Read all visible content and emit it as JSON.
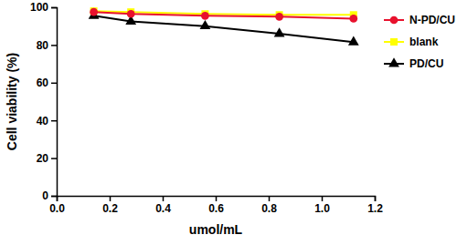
{
  "chart_data": {
    "type": "line",
    "x_label": "umol/mL",
    "y_label": "Cell viability (%)",
    "x": [
      0.14,
      0.28,
      0.56,
      0.84,
      1.12
    ],
    "series": [
      {
        "name": "N-PD/CU",
        "color": "#e8112d",
        "marker": "circle",
        "values": [
          97.5,
          96.5,
          95.5,
          95,
          94
        ]
      },
      {
        "name": "blank",
        "color": "#ffff00",
        "marker": "square",
        "values": [
          98,
          97.5,
          96.5,
          96,
          96
        ]
      },
      {
        "name": "PD/CU",
        "color": "#000000",
        "marker": "triangle",
        "values": [
          95.5,
          92.5,
          90,
          86,
          81.5
        ]
      }
    ],
    "xlim": [
      0,
      1.2
    ],
    "xticks": [
      {
        "value": 0,
        "label": "0.0"
      },
      0.2,
      0.4,
      0.6,
      0.8,
      {
        "value": 1,
        "label": "1.0"
      },
      1.2
    ],
    "ylim": [
      0,
      100
    ],
    "yticks": [
      0,
      20,
      40,
      60,
      80,
      100
    ],
    "grid": false,
    "legend": "right"
  }
}
